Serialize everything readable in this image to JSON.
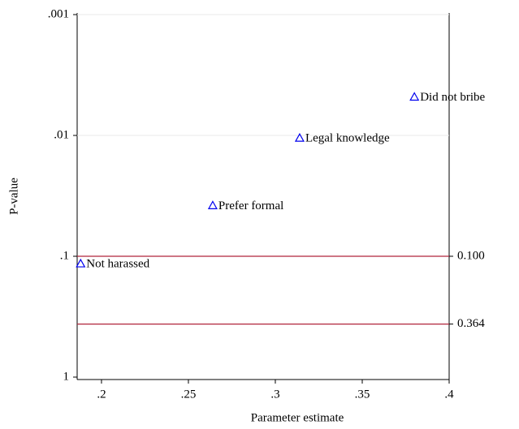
{
  "chart_data": {
    "type": "scatter",
    "x_label": "Parameter estimate",
    "y_label": "P-value",
    "xlim": [
      0.186,
      0.4
    ],
    "xticks": [
      {
        "value": 0.2,
        "label": ".2"
      },
      {
        "value": 0.25,
        "label": ".25"
      },
      {
        "value": 0.3,
        "label": ".3"
      },
      {
        "value": 0.35,
        "label": ".35"
      },
      {
        "value": 0.4,
        "label": ".4"
      }
    ],
    "ylim": [
      1,
      0.001
    ],
    "log_y": true,
    "yticks": [
      {
        "value": 0.001,
        "label": ".001"
      },
      {
        "value": 0.01,
        "label": ".01"
      },
      {
        "value": 0.1,
        "label": ".1"
      },
      1
    ],
    "y2lim": [
      1,
      0.001
    ],
    "y2ticks": [
      {
        "value": 0.1,
        "label": "0.100"
      },
      0.364
    ],
    "y2_line_color": "#b0243a",
    "grid": true,
    "series": [
      {
        "color": "#0000ee",
        "x": [
          0.188,
          0.264,
          0.314,
          0.38
        ],
        "values": [
          0.115,
          0.038,
          0.0105,
          0.0048
        ],
        "labels": [
          "Not harassed",
          "Prefer formal",
          "Legal knowledge",
          "Did not bribe"
        ]
      }
    ]
  }
}
